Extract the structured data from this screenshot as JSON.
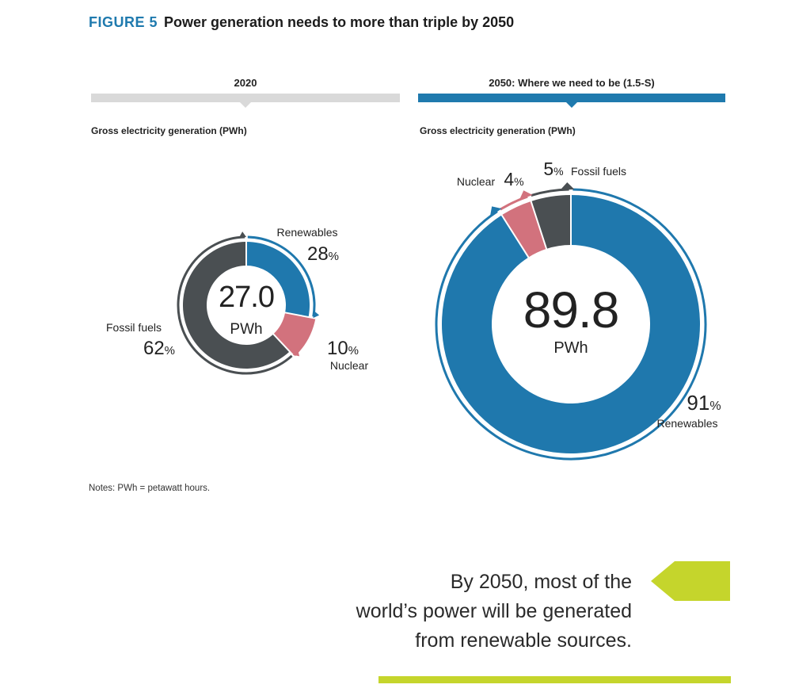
{
  "header": {
    "figure_label": "FIGURE 5",
    "title": "Power generation needs to more than triple by 2050"
  },
  "panels": {
    "left": {
      "period": "2020",
      "subtitle": "Gross electricity generation (PWh)",
      "total_value": "27.0",
      "total_unit": "PWh",
      "bar_color": "#d9d9d9"
    },
    "right": {
      "period": "2050: Where we need to be (1.5-S)",
      "subtitle": "Gross electricity generation (PWh)",
      "total_value": "89.8",
      "total_unit": "PWh",
      "bar_color": "#1f7aae"
    }
  },
  "colors": {
    "renewables": "#1f78ad",
    "nuclear": "#d2727d",
    "fossil": "#4a4f52",
    "accent_green": "#c5d52c"
  },
  "chart_data": [
    {
      "type": "pie",
      "title": "2020",
      "total": 27.0,
      "unit": "PWh",
      "slices": [
        {
          "label": "Renewables",
          "value": 28,
          "pct_text": "28",
          "color": "#1f78ad"
        },
        {
          "label": "Nuclear",
          "value": 10,
          "pct_text": "10",
          "color": "#d2727d"
        },
        {
          "label": "Fossil fuels",
          "value": 62,
          "pct_text": "62",
          "color": "#4a4f52"
        }
      ]
    },
    {
      "type": "pie",
      "title": "2050: Where we need to be (1.5-S)",
      "total": 89.8,
      "unit": "PWh",
      "slices": [
        {
          "label": "Renewables",
          "value": 91,
          "pct_text": "91",
          "color": "#1f78ad"
        },
        {
          "label": "Nuclear",
          "value": 4,
          "pct_text": "4",
          "color": "#d2727d"
        },
        {
          "label": "Fossil fuels",
          "value": 5,
          "pct_text": "5",
          "color": "#4a4f52"
        }
      ]
    }
  ],
  "note": "Notes: PWh = petawatt hours.",
  "callout": {
    "lines": [
      "By 2050, most of the",
      "world’s power will be generated",
      "from renewable sources."
    ]
  }
}
